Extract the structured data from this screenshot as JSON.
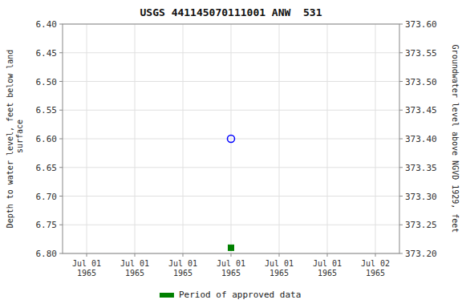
{
  "chart_data": {
    "type": "scatter",
    "title": "USGS 441145070111001 ANW  531",
    "y_label": "Depth to water level, feet below land\n surface",
    "y2_label": "Groundwater level above NGVD 1929, feet",
    "categories": [
      "Jul 01\n1965",
      "Jul 01\n1965",
      "Jul 01\n1965",
      "Jul 01\n1965",
      "Jul 01\n1965",
      "Jul 01\n1965",
      "Jul 02\n1965"
    ],
    "ylim": [
      6.8,
      6.4
    ],
    "yticks": [
      {
        "value": 6.4,
        "label": "6.40"
      },
      {
        "value": 6.45,
        "label": "6.45"
      },
      {
        "value": 6.5,
        "label": "6.50"
      },
      {
        "value": 6.55,
        "label": "6.55"
      },
      {
        "value": 6.6,
        "label": "6.60"
      },
      {
        "value": 6.65,
        "label": "6.65"
      },
      {
        "value": 6.7,
        "label": "6.70"
      },
      {
        "value": 6.75,
        "label": "6.75"
      },
      {
        "value": 6.8,
        "label": "6.80"
      }
    ],
    "y2lim": [
      373.2,
      373.6
    ],
    "y2ticks": [
      {
        "value": 373.6,
        "label": "373.60"
      },
      {
        "value": 373.55,
        "label": "373.55"
      },
      {
        "value": 373.5,
        "label": "373.50"
      },
      {
        "value": 373.45,
        "label": "373.45"
      },
      {
        "value": 373.4,
        "label": "373.40"
      },
      {
        "value": 373.35,
        "label": "373.35"
      },
      {
        "value": 373.3,
        "label": "373.30"
      },
      {
        "value": 373.25,
        "label": "373.25"
      },
      {
        "value": 373.2,
        "label": "373.20"
      }
    ],
    "grid": true,
    "legend": "bottom",
    "series": [
      {
        "color": "blue",
        "marker": "open-circle",
        "values": [
          null,
          null,
          null,
          6.6,
          null,
          null,
          null
        ]
      },
      {
        "name": "Period of approved data",
        "color": "green",
        "marker": "square",
        "values": [
          null,
          null,
          null,
          6.79,
          null,
          null,
          null
        ]
      }
    ]
  }
}
